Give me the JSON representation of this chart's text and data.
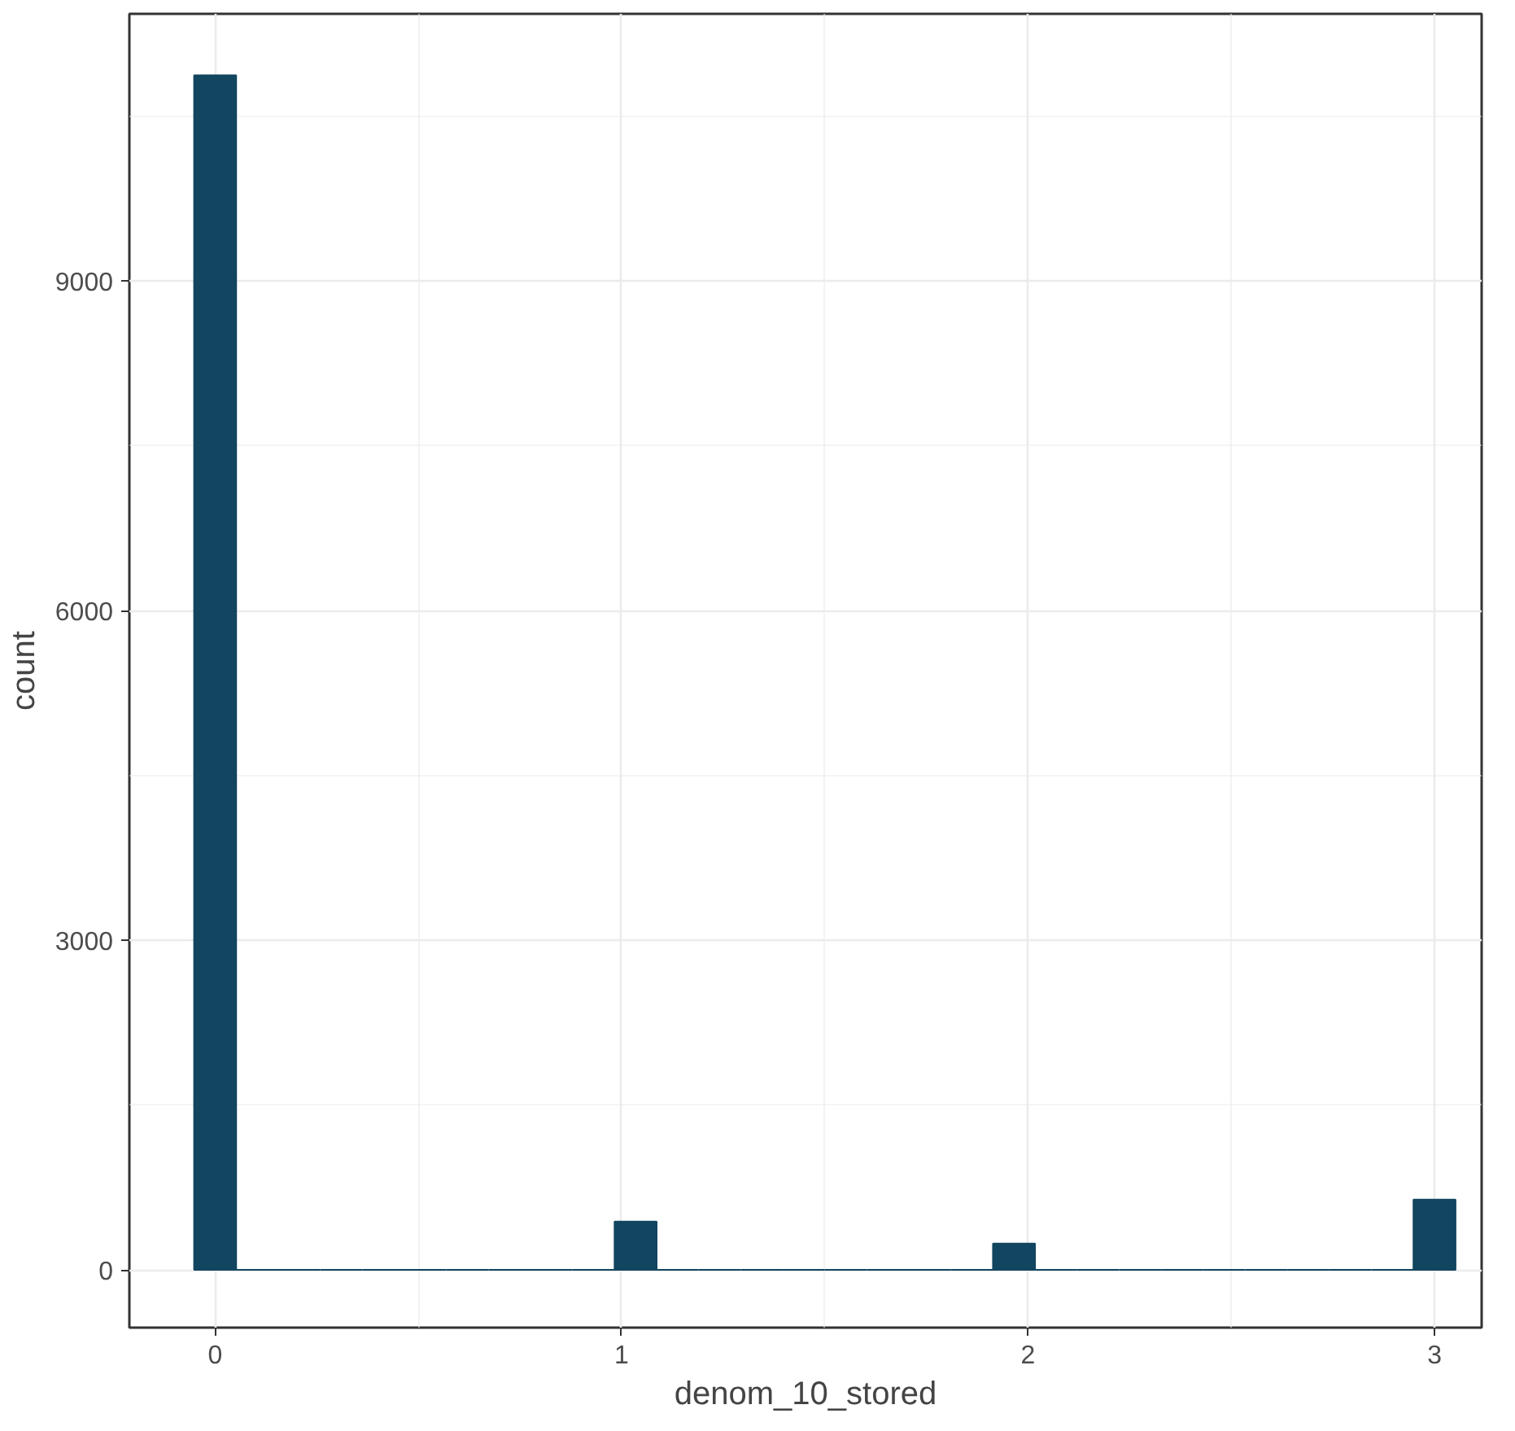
{
  "chart_data": {
    "type": "histogram",
    "xlabel": "denom_10_stored",
    "ylabel": "count",
    "bins": [
      -0.0517,
      0.0517,
      0.1552,
      0.2586,
      0.3621,
      0.4655,
      0.569,
      0.6724,
      0.7759,
      0.8793,
      0.9828,
      1.0862,
      1.1897,
      1.2931,
      1.3966,
      1.5,
      1.6034,
      1.7069,
      1.8103,
      1.9138,
      2.0172,
      2.1207,
      2.2241,
      2.3276,
      2.431,
      2.5345,
      2.6379,
      2.7414,
      2.8448,
      2.9483,
      3.0517
    ],
    "values": [
      10870,
      0,
      0,
      0,
      0,
      0,
      0,
      0,
      0,
      0,
      440,
      0,
      0,
      0,
      0,
      0,
      0,
      0,
      0,
      240,
      0,
      0,
      0,
      0,
      0,
      0,
      0,
      0,
      0,
      640
    ],
    "color": "#12455f",
    "xlim": [
      -0.211,
      3.116
    ],
    "ylim": [
      -525,
      11430
    ],
    "xticks": [
      0,
      {
        "value": 0.5,
        "label": null
      },
      1,
      {
        "value": 1.5,
        "label": null
      },
      2,
      {
        "value": 2.5,
        "label": null
      },
      3
    ],
    "yticks": [
      0,
      {
        "value": 1500,
        "label": null
      },
      3000,
      {
        "value": 4500,
        "label": null
      },
      6000,
      {
        "value": 7500,
        "label": null
      },
      9000,
      {
        "value": 10500,
        "label": null
      }
    ],
    "grid": true
  }
}
